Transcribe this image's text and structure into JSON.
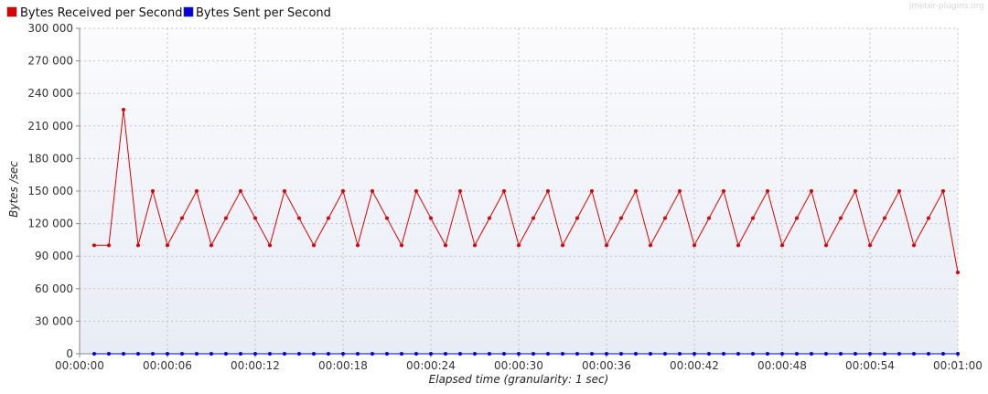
{
  "chart_data": {
    "type": "line",
    "watermark": "jmeter-plugins.org",
    "xlabel": "Elapsed time (granularity: 1 sec)",
    "ylabel": "Bytes /sec",
    "ylim": [
      0,
      300000
    ],
    "xlim": [
      0,
      60
    ],
    "y_ticks": [
      0,
      30000,
      60000,
      90000,
      120000,
      150000,
      180000,
      210000,
      240000,
      270000,
      300000
    ],
    "y_tick_labels": [
      "0",
      "30 000",
      "60 000",
      "90 000",
      "120 000",
      "150 000",
      "180 000",
      "210 000",
      "240 000",
      "270 000",
      "300 000"
    ],
    "x_ticks": [
      0,
      6,
      12,
      18,
      24,
      30,
      36,
      42,
      48,
      54,
      60
    ],
    "x_tick_labels": [
      "00:00:00",
      "00:00:06",
      "00:00:12",
      "00:00:18",
      "00:00:24",
      "00:00:30",
      "00:00:36",
      "00:00:42",
      "00:00:48",
      "00:00:54",
      "00:01:00"
    ],
    "grid": true,
    "legend_position": "top-left",
    "x": [
      1,
      2,
      3,
      4,
      5,
      6,
      7,
      8,
      9,
      10,
      11,
      12,
      13,
      14,
      15,
      16,
      17,
      18,
      19,
      20,
      21,
      22,
      23,
      24,
      25,
      26,
      27,
      28,
      29,
      30,
      31,
      32,
      33,
      34,
      35,
      36,
      37,
      38,
      39,
      40,
      41,
      42,
      43,
      44,
      45,
      46,
      47,
      48,
      49,
      50,
      51,
      52,
      53,
      54,
      55,
      56,
      57,
      58,
      59,
      60
    ],
    "series": [
      {
        "name": "Bytes Received per Second",
        "color": "#e00000",
        "values": [
          100000,
          100000,
          225000,
          100000,
          150000,
          100000,
          125000,
          150000,
          100000,
          125000,
          150000,
          125000,
          100000,
          150000,
          125000,
          100000,
          125000,
          150000,
          100000,
          150000,
          125000,
          100000,
          150000,
          125000,
          100000,
          150000,
          100000,
          125000,
          150000,
          100000,
          125000,
          150000,
          100000,
          125000,
          150000,
          100000,
          125000,
          150000,
          100000,
          125000,
          150000,
          100000,
          125000,
          150000,
          100000,
          125000,
          150000,
          100000,
          125000,
          150000,
          100000,
          125000,
          150000,
          100000,
          125000,
          150000,
          100000,
          125000,
          150000,
          75000
        ]
      },
      {
        "name": "Bytes Sent per Second",
        "color": "#0000e0",
        "values": [
          0,
          0,
          0,
          0,
          0,
          0,
          0,
          0,
          0,
          0,
          0,
          0,
          0,
          0,
          0,
          0,
          0,
          0,
          0,
          0,
          0,
          0,
          0,
          0,
          0,
          0,
          0,
          0,
          0,
          0,
          0,
          0,
          0,
          0,
          0,
          0,
          0,
          0,
          0,
          0,
          0,
          0,
          0,
          0,
          0,
          0,
          0,
          0,
          0,
          0,
          0,
          0,
          0,
          0,
          0,
          0,
          0,
          0,
          0,
          0
        ]
      }
    ]
  }
}
